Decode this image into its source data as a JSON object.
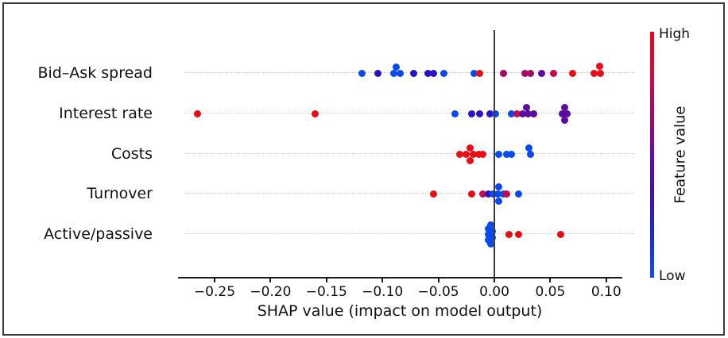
{
  "chart_data": {
    "type": "scatter",
    "subtype": "shap-summary-beeswarm",
    "title": "",
    "xlabel": "SHAP value (impact on model output)",
    "ylabel": "",
    "xlim": [
      -0.283,
      0.114
    ],
    "grid": "horizontal-dotted",
    "x_ticks": [
      -0.25,
      -0.2,
      -0.15,
      -0.1,
      -0.05,
      0.0,
      0.05,
      0.1
    ],
    "x_tick_labels": [
      "−0.25",
      "−0.20",
      "−0.15",
      "−0.10",
      "−0.05",
      "0.00",
      "0.05",
      "0.10"
    ],
    "palette": {
      "blue": "#0a49f0",
      "navy": "#2b10c8",
      "purple": "#5c0aa0",
      "rose": "#a50960",
      "crimson": "#cb0847",
      "red": "#e80d15"
    },
    "rows": [
      {
        "feature": "Bid–Ask spread",
        "points": [
          {
            "v": -0.118,
            "c": "blue",
            "dy": 0
          },
          {
            "v": -0.104,
            "c": "navy",
            "dy": 0
          },
          {
            "v": -0.09,
            "c": "blue",
            "dy": 0
          },
          {
            "v": -0.088,
            "c": "blue",
            "dy": -8
          },
          {
            "v": -0.084,
            "c": "blue",
            "dy": 0
          },
          {
            "v": -0.072,
            "c": "navy",
            "dy": 0
          },
          {
            "v": -0.059,
            "c": "navy",
            "dy": 0
          },
          {
            "v": -0.054,
            "c": "navy",
            "dy": 0
          },
          {
            "v": -0.045,
            "c": "blue",
            "dy": 0
          },
          {
            "v": -0.018,
            "c": "blue",
            "dy": 0
          },
          {
            "v": -0.013,
            "c": "red",
            "dy": 0
          },
          {
            "v": 0.008,
            "c": "rose",
            "dy": 0
          },
          {
            "v": 0.027,
            "c": "rose",
            "dy": 0
          },
          {
            "v": 0.032,
            "c": "rose",
            "dy": 0
          },
          {
            "v": 0.042,
            "c": "purple",
            "dy": 0
          },
          {
            "v": 0.053,
            "c": "crimson",
            "dy": 0
          },
          {
            "v": 0.07,
            "c": "red",
            "dy": 0
          },
          {
            "v": 0.089,
            "c": "red",
            "dy": 0
          },
          {
            "v": 0.095,
            "c": "red",
            "dy": 0
          },
          {
            "v": 0.094,
            "c": "red",
            "dy": -9
          }
        ]
      },
      {
        "feature": "Interest rate",
        "points": [
          {
            "v": -0.265,
            "c": "red",
            "dy": 0
          },
          {
            "v": -0.16,
            "c": "red",
            "dy": 0
          },
          {
            "v": -0.035,
            "c": "blue",
            "dy": 0
          },
          {
            "v": -0.02,
            "c": "navy",
            "dy": 0
          },
          {
            "v": -0.013,
            "c": "navy",
            "dy": 0
          },
          {
            "v": -0.004,
            "c": "navy",
            "dy": 0
          },
          {
            "v": 0.001,
            "c": "blue",
            "dy": 0
          },
          {
            "v": 0.015,
            "c": "blue",
            "dy": 0
          },
          {
            "v": 0.02,
            "c": "crimson",
            "dy": 0
          },
          {
            "v": 0.025,
            "c": "purple",
            "dy": 0
          },
          {
            "v": 0.029,
            "c": "purple",
            "dy": -8
          },
          {
            "v": 0.03,
            "c": "purple",
            "dy": 0
          },
          {
            "v": 0.035,
            "c": "purple",
            "dy": 0
          },
          {
            "v": 0.061,
            "c": "purple",
            "dy": 0
          },
          {
            "v": 0.063,
            "c": "purple",
            "dy": -8
          },
          {
            "v": 0.063,
            "c": "purple",
            "dy": 8
          },
          {
            "v": 0.065,
            "c": "purple",
            "dy": 0
          }
        ]
      },
      {
        "feature": "Costs",
        "points": [
          {
            "v": -0.031,
            "c": "red",
            "dy": 0
          },
          {
            "v": -0.025,
            "c": "red",
            "dy": 0
          },
          {
            "v": -0.022,
            "c": "red",
            "dy": -8
          },
          {
            "v": -0.022,
            "c": "red",
            "dy": 8
          },
          {
            "v": -0.019,
            "c": "red",
            "dy": 0
          },
          {
            "v": -0.014,
            "c": "red",
            "dy": 0
          },
          {
            "v": -0.01,
            "c": "red",
            "dy": 0
          },
          {
            "v": 0.004,
            "c": "blue",
            "dy": 0
          },
          {
            "v": 0.011,
            "c": "blue",
            "dy": 0
          },
          {
            "v": 0.015,
            "c": "blue",
            "dy": 0
          },
          {
            "v": 0.031,
            "c": "blue",
            "dy": -8
          },
          {
            "v": 0.032,
            "c": "blue",
            "dy": 0
          }
        ]
      },
      {
        "feature": "Turnover",
        "points": [
          {
            "v": -0.054,
            "c": "red",
            "dy": 0
          },
          {
            "v": -0.02,
            "c": "red",
            "dy": 0
          },
          {
            "v": -0.01,
            "c": "crimson",
            "dy": 0
          },
          {
            "v": -0.005,
            "c": "navy",
            "dy": 0
          },
          {
            "v": -0.001,
            "c": "blue",
            "dy": 0
          },
          {
            "v": 0.003,
            "c": "blue",
            "dy": 0
          },
          {
            "v": 0.004,
            "c": "blue",
            "dy": -9
          },
          {
            "v": 0.004,
            "c": "blue",
            "dy": 9
          },
          {
            "v": 0.008,
            "c": "blue",
            "dy": 0
          },
          {
            "v": 0.011,
            "c": "crimson",
            "dy": 0
          },
          {
            "v": 0.022,
            "c": "blue",
            "dy": 0
          }
        ]
      },
      {
        "feature": "Active/passive",
        "points": [
          {
            "v": -0.003,
            "c": "blue",
            "dy": -12
          },
          {
            "v": -0.005,
            "c": "blue",
            "dy": -7
          },
          {
            "v": -0.002,
            "c": "blue",
            "dy": -4
          },
          {
            "v": -0.005,
            "c": "blue",
            "dy": 0
          },
          {
            "v": -0.002,
            "c": "blue",
            "dy": 4
          },
          {
            "v": -0.005,
            "c": "blue",
            "dy": 7
          },
          {
            "v": -0.003,
            "c": "blue",
            "dy": 12
          },
          {
            "v": 0.013,
            "c": "red",
            "dy": 0
          },
          {
            "v": 0.022,
            "c": "red",
            "dy": 0
          },
          {
            "v": 0.059,
            "c": "red",
            "dy": 0
          }
        ]
      }
    ],
    "colorbar": {
      "title": "Feature value",
      "high_label": "High",
      "low_label": "Low",
      "gradient_stops": [
        "#f00514",
        "#d90740",
        "#a30976",
        "#6c0a9e",
        "#3e10b6",
        "#1b2ad8",
        "#0c50f2"
      ]
    }
  }
}
